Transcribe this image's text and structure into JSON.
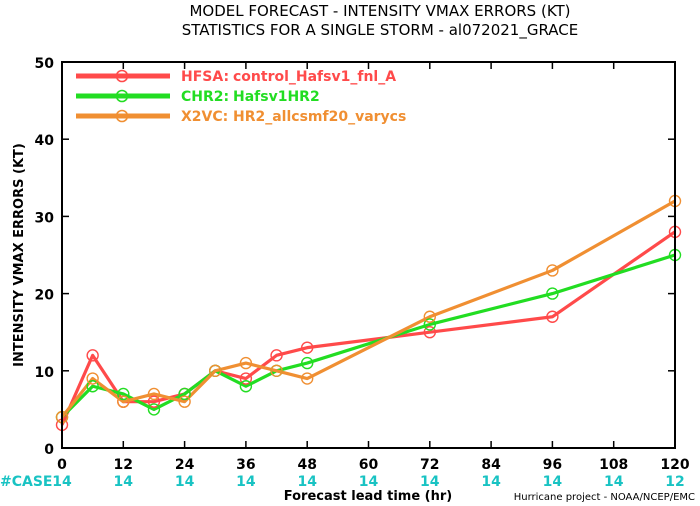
{
  "chart_data": {
    "type": "line",
    "title": "MODEL FORECAST - INTENSITY VMAX ERRORS (KT)",
    "subtitle": "STATISTICS FOR A SINGLE STORM - al072021_GRACE",
    "xlabel": "Forecast lead time (hr)",
    "ylabel": "INTENSITY VMAX ERRORS (KT)",
    "xlim": [
      0,
      120
    ],
    "ylim": [
      0,
      50
    ],
    "xticks": [
      0,
      12,
      24,
      36,
      48,
      60,
      72,
      84,
      96,
      108,
      120
    ],
    "yticks": [
      0,
      10,
      20,
      30,
      40,
      50
    ],
    "x": [
      0,
      6,
      12,
      18,
      24,
      30,
      36,
      42,
      48,
      72,
      96,
      120
    ],
    "legend_position": "top-left",
    "series": [
      {
        "name": "HFSA:",
        "label": "control_Hafsv1_fnl_A",
        "color": "#ff4a4a",
        "values": [
          3,
          12,
          6,
          6,
          7,
          10,
          9,
          12,
          13,
          15,
          17,
          28
        ]
      },
      {
        "name": "CHR2:",
        "label": "Hafsv1HR2",
        "color": "#22dd22",
        "values": [
          4,
          8,
          7,
          5,
          7,
          10,
          8,
          10,
          11,
          16,
          20,
          25
        ]
      },
      {
        "name": "X2VC:",
        "label": "HR2_allcsmf20_varycs",
        "color": "#f08f32",
        "values": [
          4,
          9,
          6,
          7,
          6,
          10,
          11,
          10,
          9,
          17,
          23,
          32
        ]
      }
    ],
    "cases": {
      "label": "#CASE",
      "x": [
        0,
        12,
        24,
        36,
        48,
        60,
        72,
        84,
        96,
        108,
        120
      ],
      "values": [
        "14",
        "14",
        "14",
        "14",
        "14",
        "14",
        "14",
        "14",
        "14",
        "14",
        "12"
      ],
      "color": "#19c3c3"
    },
    "credit": "Hurricane project - NOAA/NCEP/EMC"
  }
}
